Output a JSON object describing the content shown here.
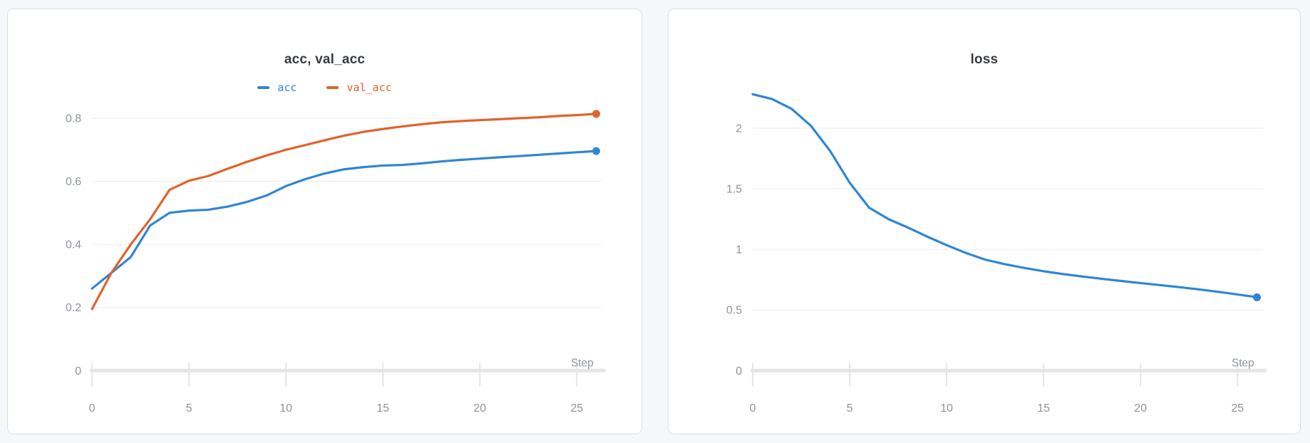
{
  "chart_data": [
    {
      "type": "line",
      "title": "acc, val_acc",
      "xlabel": "Step",
      "x_ticks": [
        0,
        5,
        10,
        15,
        20,
        25
      ],
      "y_ticks": [
        0,
        0.2,
        0.4,
        0.6,
        0.8
      ],
      "y_tick_labels": [
        "0",
        "0.2",
        "0.4",
        "0.6",
        "0.8"
      ],
      "xlim": [
        0,
        26.3
      ],
      "ylim": [
        0,
        0.88
      ],
      "grid": true,
      "legend_position": "top-center",
      "x": [
        0,
        1,
        2,
        3,
        4,
        5,
        6,
        7,
        8,
        9,
        10,
        11,
        12,
        13,
        14,
        15,
        16,
        17,
        18,
        19,
        20,
        21,
        22,
        23,
        24,
        25,
        26
      ],
      "series": [
        {
          "name": "acc",
          "color": "#2e86d4",
          "values": [
            0.26,
            0.31,
            0.36,
            0.46,
            0.5,
            0.507,
            0.51,
            0.52,
            0.535,
            0.555,
            0.585,
            0.607,
            0.625,
            0.638,
            0.645,
            0.65,
            0.652,
            0.657,
            0.663,
            0.668,
            0.672,
            0.676,
            0.68,
            0.684,
            0.688,
            0.692,
            0.696
          ]
        },
        {
          "name": "val_acc",
          "color": "#e0632b",
          "values": [
            0.195,
            0.31,
            0.4,
            0.48,
            0.573,
            0.602,
            0.617,
            0.64,
            0.662,
            0.682,
            0.7,
            0.715,
            0.73,
            0.745,
            0.757,
            0.766,
            0.774,
            0.781,
            0.787,
            0.791,
            0.794,
            0.797,
            0.8,
            0.803,
            0.807,
            0.81,
            0.814
          ]
        }
      ]
    },
    {
      "type": "line",
      "title": "loss",
      "xlabel": "Step",
      "x_ticks": [
        0,
        5,
        10,
        15,
        20,
        25
      ],
      "y_ticks": [
        0,
        0.5,
        1,
        1.5,
        2
      ],
      "y_tick_labels": [
        "0",
        "0.5",
        "1",
        "1.5",
        "2"
      ],
      "xlim": [
        0,
        26.3
      ],
      "ylim": [
        0,
        2.29
      ],
      "grid": true,
      "legend_position": "none",
      "x": [
        0,
        1,
        2,
        3,
        4,
        5,
        6,
        7,
        8,
        9,
        10,
        11,
        12,
        13,
        14,
        15,
        16,
        17,
        18,
        19,
        20,
        21,
        22,
        23,
        24,
        25,
        26
      ],
      "series": [
        {
          "name": "loss",
          "color": "#2e86d4",
          "values": [
            2.28,
            2.24,
            2.16,
            2.02,
            1.81,
            1.55,
            1.345,
            1.25,
            1.18,
            1.105,
            1.035,
            0.97,
            0.915,
            0.878,
            0.847,
            0.82,
            0.796,
            0.776,
            0.757,
            0.739,
            0.722,
            0.705,
            0.688,
            0.67,
            0.65,
            0.628,
            0.605
          ]
        }
      ]
    }
  ]
}
